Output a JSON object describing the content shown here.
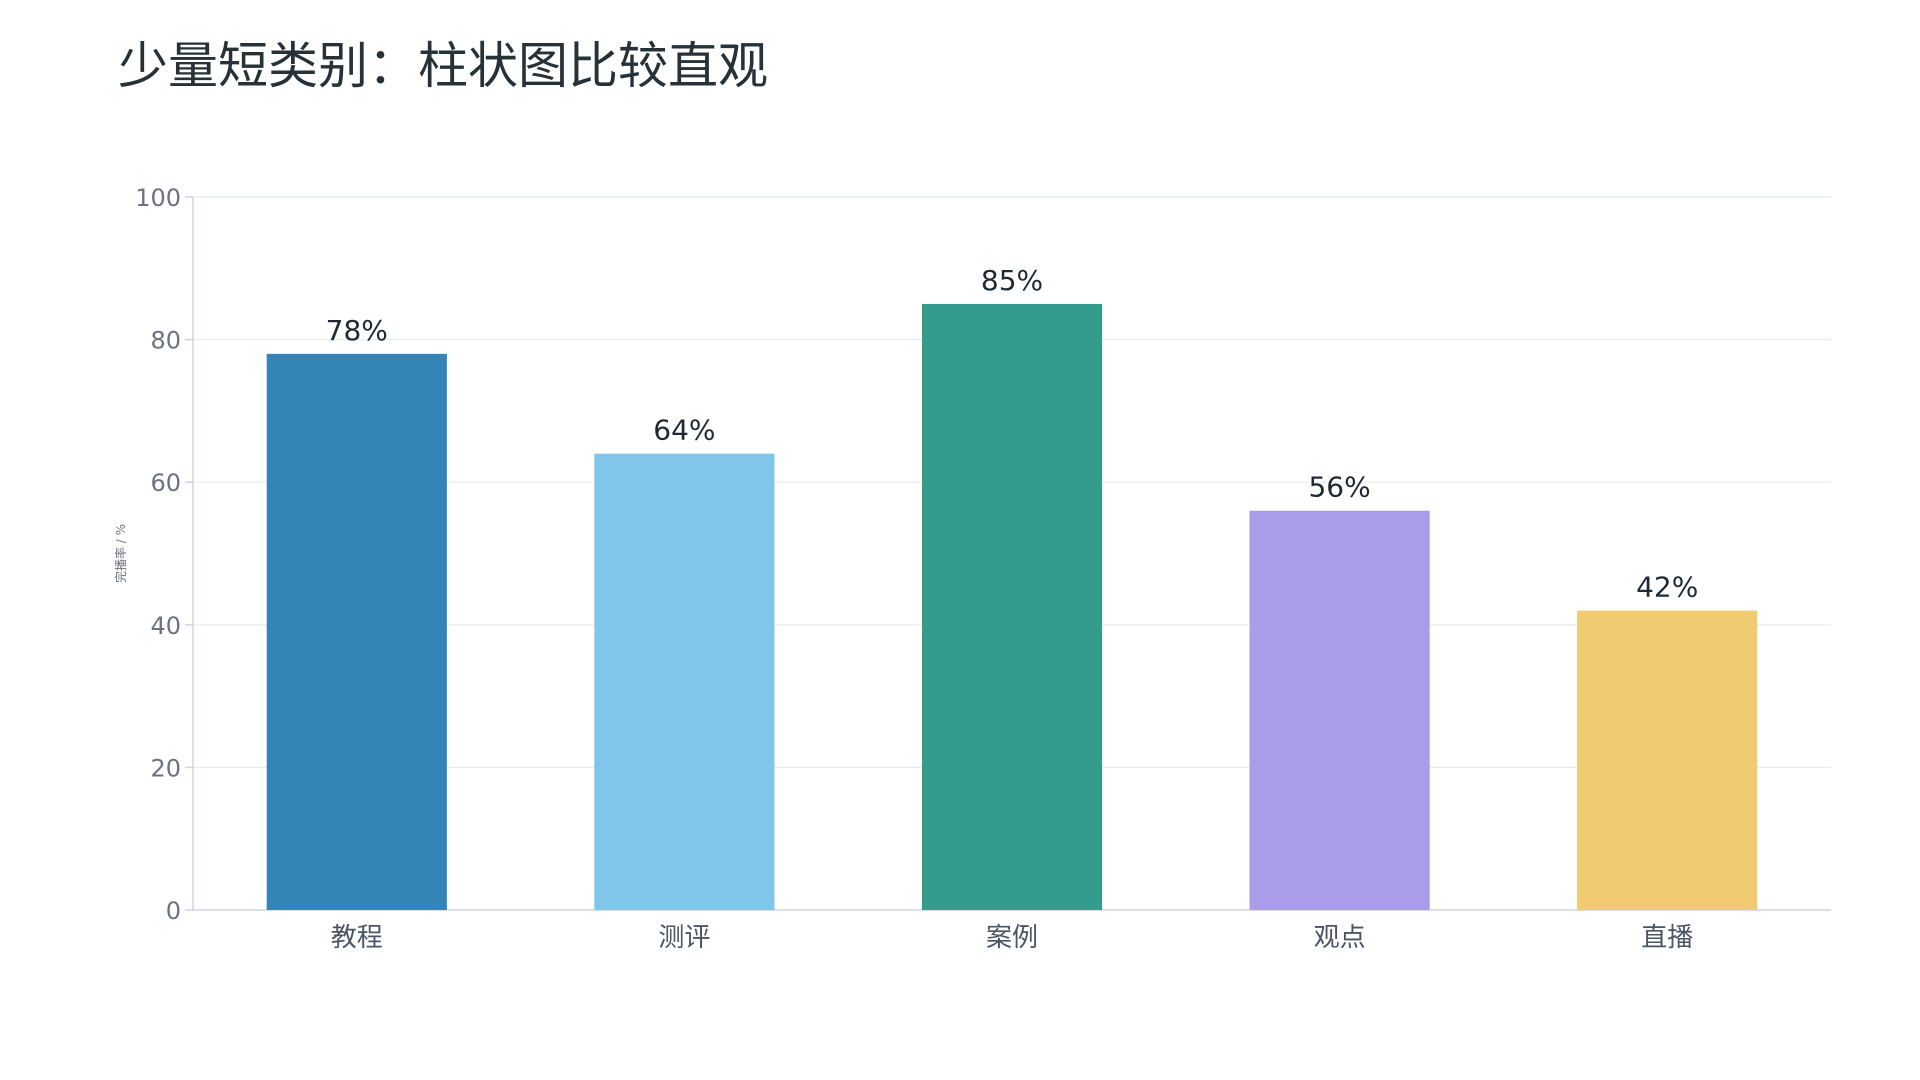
{
  "chart_data": {
    "type": "bar",
    "title": "少量短类别：柱状图比较直观",
    "categories": [
      "教程",
      "测评",
      "案例",
      "观点",
      "直播"
    ],
    "values": [
      78,
      64,
      85,
      56,
      42
    ],
    "data_labels": [
      "78%",
      "64%",
      "85%",
      "56%",
      "42%"
    ],
    "colors": [
      "#3385b7",
      "#80c6e8",
      "#339b8b",
      "#aa9ce8",
      "#f0cb71"
    ],
    "xlabel": "",
    "ylabel": "完播率 / %",
    "ylim": [
      0,
      100
    ],
    "yticks": [
      0,
      20,
      40,
      60,
      80,
      100
    ],
    "ytick_labels": [
      "0",
      "20",
      "40",
      "60",
      "80",
      "100"
    ],
    "grid": true,
    "legend": "none"
  }
}
